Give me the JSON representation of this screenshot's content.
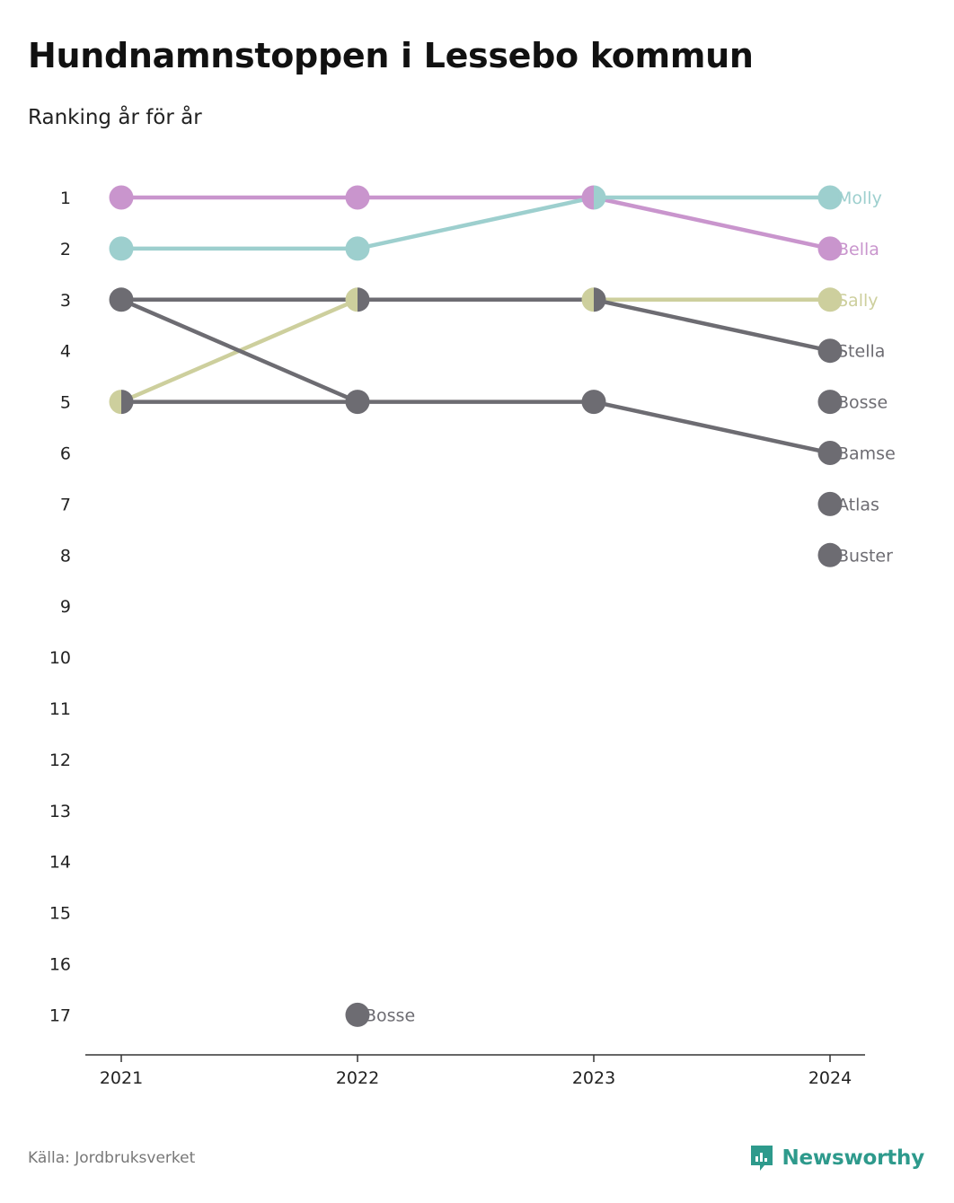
{
  "title": "Hundnamnstoppen i Lessebo kommun",
  "subtitle": "Ranking år för år",
  "source": "Källa: Jordbruksverket",
  "brand": {
    "name": "Newsworthy",
    "icon": "newsworthy-logo-icon",
    "color": "#2e9a8c"
  },
  "chart_data": {
    "type": "line",
    "chart_style": "bump",
    "x": [
      "2021",
      "2022",
      "2023",
      "2024"
    ],
    "y_ticks": [
      "1",
      "2",
      "3",
      "4",
      "5",
      "6",
      "7",
      "8",
      "9",
      "10",
      "11",
      "12",
      "13",
      "14",
      "15",
      "16",
      "17"
    ],
    "ylim": [
      1,
      17
    ],
    "y_reversed": true,
    "grid": false,
    "series": [
      {
        "name": "Bella",
        "color": "#c995cd",
        "values": [
          1,
          1,
          1,
          2
        ]
      },
      {
        "name": "Molly",
        "color": "#9dcfce",
        "values": [
          2,
          2,
          1,
          1
        ]
      },
      {
        "name": "Sally",
        "color": "#cdcf9d",
        "values": [
          5,
          3,
          3,
          3
        ]
      },
      {
        "name": "Stella",
        "color": "#6d6c72",
        "values": [
          3,
          3,
          3,
          4
        ]
      },
      {
        "name": "Bamse",
        "color": "#6d6c72",
        "values": [
          3,
          5,
          5,
          6
        ]
      },
      {
        "name": "Bosse",
        "color": "#6d6c72",
        "values": [
          5,
          5,
          null,
          5
        ]
      },
      {
        "name": "Bosse",
        "color": "#6d6c72",
        "values": [
          null,
          17,
          null,
          null
        ]
      },
      {
        "name": "Atlas",
        "color": "#6d6c72",
        "values": [
          null,
          null,
          null,
          7
        ]
      },
      {
        "name": "Buster",
        "color": "#6d6c72",
        "values": [
          null,
          null,
          null,
          8
        ]
      }
    ]
  }
}
